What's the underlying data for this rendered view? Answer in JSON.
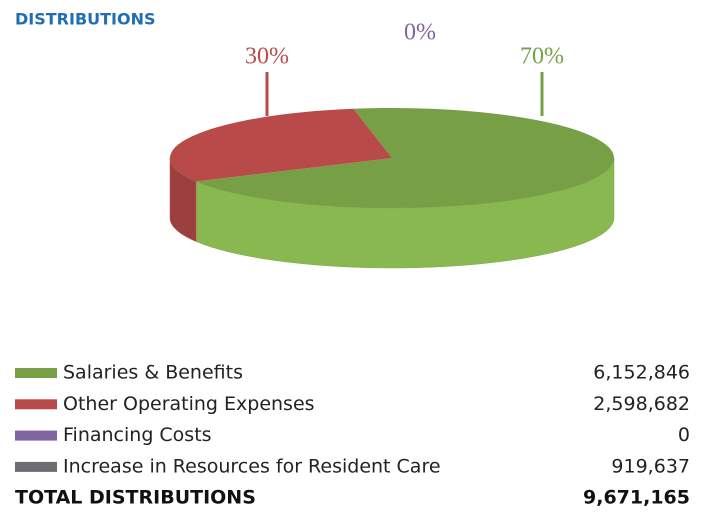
{
  "chart_data": {
    "type": "pie",
    "title": "DISTRIBUTIONS",
    "categories": [
      "Salaries & Benefits",
      "Other Operating Expenses",
      "Financing Costs",
      "Increase in Resources for Resident Care"
    ],
    "values": [
      70,
      30,
      0,
      null
    ],
    "value_labels": [
      "70%",
      "30%",
      "0%",
      null
    ],
    "colors": [
      "#77a046",
      "#b84b4a",
      "#8064a2",
      "#6d6e71"
    ],
    "amounts": [
      "6,152,846",
      "2,598,682",
      "0",
      "919,637"
    ],
    "total": {
      "label": "TOTAL DISTRIBUTIONS",
      "amount": "9,671,165"
    }
  }
}
